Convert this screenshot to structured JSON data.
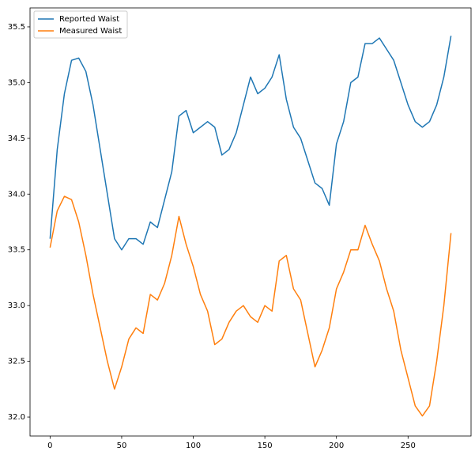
{
  "chart_data": {
    "type": "line",
    "x": [
      0,
      5,
      10,
      15,
      20,
      25,
      30,
      35,
      40,
      45,
      50,
      55,
      60,
      65,
      70,
      75,
      80,
      85,
      90,
      95,
      100,
      105,
      110,
      115,
      120,
      125,
      130,
      135,
      140,
      145,
      150,
      155,
      160,
      165,
      170,
      175,
      180,
      185,
      190,
      195,
      200,
      205,
      210,
      215,
      220,
      225,
      230,
      235,
      240,
      245,
      250,
      255,
      260,
      265,
      270,
      275,
      280
    ],
    "series": [
      {
        "name": "Reported Waist",
        "color": "#1f77b4",
        "values": [
          33.6,
          34.4,
          34.9,
          35.2,
          35.22,
          35.1,
          34.8,
          34.4,
          34.0,
          33.6,
          33.5,
          33.6,
          33.6,
          33.55,
          33.75,
          33.7,
          33.95,
          34.2,
          34.7,
          34.75,
          34.55,
          34.6,
          34.65,
          34.6,
          34.35,
          34.4,
          34.55,
          34.8,
          35.05,
          34.9,
          34.95,
          35.05,
          35.25,
          34.85,
          34.6,
          34.5,
          34.3,
          34.1,
          34.05,
          33.9,
          34.45,
          34.65,
          35.0,
          35.05,
          35.35,
          35.35,
          35.4,
          35.3,
          35.2,
          35.0,
          34.8,
          34.65,
          34.6,
          34.65,
          34.8,
          35.05,
          35.42
        ]
      },
      {
        "name": "Measured Waist",
        "color": "#ff7f0e",
        "values": [
          33.52,
          33.85,
          33.98,
          33.95,
          33.75,
          33.45,
          33.1,
          32.8,
          32.5,
          32.25,
          32.45,
          32.7,
          32.8,
          32.75,
          33.1,
          33.05,
          33.2,
          33.45,
          33.8,
          33.55,
          33.35,
          33.1,
          32.95,
          32.65,
          32.7,
          32.85,
          32.95,
          33.0,
          32.9,
          32.85,
          33.0,
          32.95,
          33.4,
          33.45,
          33.15,
          33.05,
          32.75,
          32.45,
          32.6,
          32.8,
          33.15,
          33.3,
          33.5,
          33.5,
          33.72,
          33.55,
          33.4,
          33.15,
          32.95,
          32.6,
          32.35,
          32.1,
          32.01,
          32.1,
          32.5,
          33.0,
          33.65
        ]
      }
    ],
    "xlim": [
      -14,
      294
    ],
    "ylim": [
      31.83,
      35.67
    ],
    "xticks": [
      0,
      50,
      100,
      150,
      200,
      250
    ],
    "yticks": [
      {
        "value": 32,
        "label": "32.0"
      },
      32.5,
      {
        "value": 33,
        "label": "33.0"
      },
      33.5,
      {
        "value": 34,
        "label": "34.0"
      },
      34.5,
      {
        "value": 35,
        "label": "35.0"
      },
      35.5
    ],
    "legend": "upper left"
  }
}
